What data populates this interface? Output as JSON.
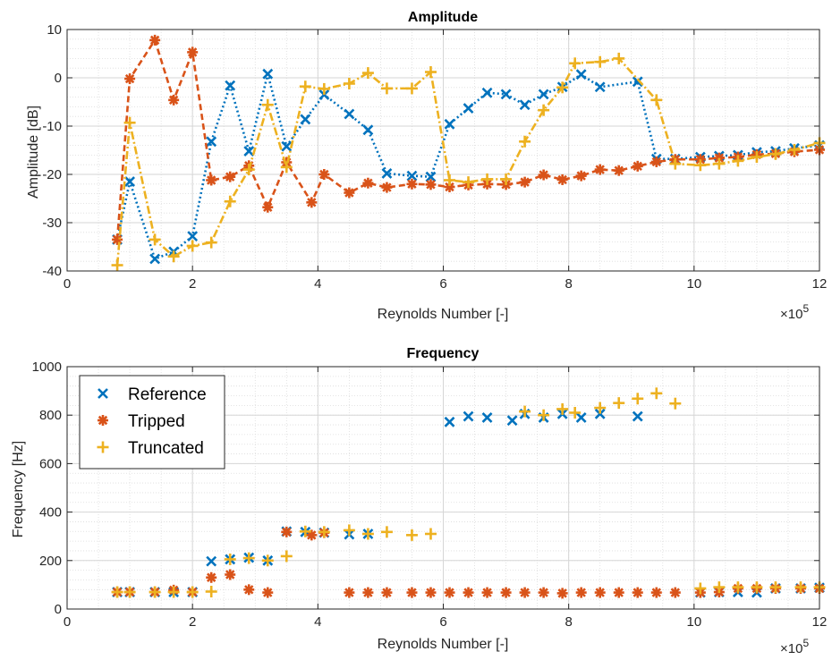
{
  "chart_data": [
    {
      "type": "line",
      "title": "Amplitude",
      "xlabel": "Reynolds Number [-]",
      "ylabel": "Amplitude [dB]",
      "x_exponent_label": "×10",
      "x_exponent": "5",
      "xlim": [
        0,
        12
      ],
      "ylim": [
        -40,
        10
      ],
      "xticks": [
        0,
        2,
        4,
        6,
        8,
        10,
        12
      ],
      "yticks": [
        -40,
        -30,
        -20,
        -10,
        0,
        10
      ],
      "grid": true,
      "minor_grid": true,
      "series": [
        {
          "name": "Reference",
          "color": "#0072BD",
          "marker": "x",
          "line": "dotted",
          "x": [
            0.8,
            1.0,
            1.4,
            1.7,
            2.0,
            2.3,
            2.6,
            2.9,
            3.2,
            3.5,
            3.8,
            4.1,
            4.5,
            4.8,
            5.1,
            5.5,
            5.8,
            6.1,
            6.4,
            6.7,
            7.0,
            7.3,
            7.6,
            7.9,
            8.2,
            8.5,
            9.1,
            9.4,
            9.7,
            10.1,
            10.4,
            10.7,
            11.0,
            11.3,
            11.6,
            12.0
          ],
          "y": [
            -33.5,
            -21.5,
            -37.5,
            -36,
            -32.8,
            -13.2,
            -1.6,
            -15.2,
            0.8,
            -14.2,
            -8.6,
            -3.5,
            -7.5,
            -10.8,
            -19.8,
            -20.3,
            -20.5,
            -9.6,
            -6.3,
            -3.1,
            -3.4,
            -5.6,
            -3.4,
            -1.9,
            0.7,
            -1.9,
            -0.8,
            -16.8,
            -16.8,
            -16.4,
            -16.2,
            -16.0,
            -15.4,
            -15.2,
            -14.6,
            -14.0
          ]
        },
        {
          "name": "Tripped",
          "color": "#D95319",
          "marker": "asterisk",
          "line": "dashed",
          "x": [
            0.8,
            1.0,
            1.4,
            1.7,
            2.0,
            2.3,
            2.6,
            2.9,
            3.2,
            3.5,
            3.9,
            4.1,
            4.5,
            4.8,
            5.1,
            5.5,
            5.8,
            6.1,
            6.4,
            6.7,
            7.0,
            7.3,
            7.6,
            7.9,
            8.2,
            8.5,
            8.8,
            9.1,
            9.4,
            9.7,
            10.1,
            10.4,
            10.7,
            11.0,
            11.3,
            11.6,
            12.0
          ],
          "y": [
            -33.5,
            -0.2,
            7.8,
            -4.6,
            5.3,
            -21.2,
            -20.5,
            -18.2,
            -26.8,
            -17.5,
            -25.8,
            -20.0,
            -23.8,
            -21.8,
            -22.7,
            -22.0,
            -22.1,
            -22.6,
            -22.2,
            -22.0,
            -22.1,
            -21.6,
            -20.1,
            -21.1,
            -20.3,
            -19.0,
            -19.2,
            -18.3,
            -17.4,
            -16.9,
            -16.9,
            -16.6,
            -16.4,
            -15.9,
            -15.7,
            -15.3,
            -14.9
          ]
        },
        {
          "name": "Truncated",
          "color": "#EDB120",
          "marker": "plus",
          "line": "dashdot",
          "x": [
            0.8,
            1.0,
            1.4,
            1.7,
            2.0,
            2.3,
            2.6,
            2.9,
            3.2,
            3.5,
            3.8,
            4.1,
            4.5,
            4.8,
            5.1,
            5.5,
            5.8,
            6.1,
            6.4,
            6.7,
            7.0,
            7.3,
            7.6,
            7.9,
            8.1,
            8.5,
            8.8,
            9.4,
            9.7,
            10.1,
            10.4,
            10.7,
            11.0,
            11.3,
            11.6,
            12.0
          ],
          "y": [
            -38.8,
            -9.3,
            -33.5,
            -37.0,
            -34.8,
            -34.1,
            -25.6,
            -19.0,
            -5.6,
            -18.5,
            -1.8,
            -2.3,
            -1.2,
            1.0,
            -2.2,
            -2.2,
            1.2,
            -21.2,
            -21.6,
            -21.0,
            -21.0,
            -13.2,
            -6.7,
            -2.0,
            3.0,
            3.3,
            4.0,
            -4.6,
            -17.8,
            -18.1,
            -17.8,
            -17.2,
            -16.4,
            -15.8,
            -14.9,
            -13.5
          ]
        }
      ]
    },
    {
      "type": "scatter",
      "title": "Frequency",
      "xlabel": "Reynolds Number [-]",
      "ylabel": "Frequency [Hz]",
      "x_exponent_label": "×10",
      "x_exponent": "5",
      "xlim": [
        0,
        12
      ],
      "ylim": [
        0,
        1000
      ],
      "xticks": [
        0,
        2,
        4,
        6,
        8,
        10,
        12
      ],
      "yticks": [
        0,
        200,
        400,
        600,
        800,
        1000
      ],
      "grid": true,
      "minor_grid": true,
      "legend": {
        "placement": "top-left",
        "entries": [
          "Reference",
          "Tripped",
          "Truncated"
        ]
      },
      "series": [
        {
          "name": "Reference",
          "color": "#0072BD",
          "marker": "x",
          "x": [
            0.8,
            1.0,
            1.4,
            1.7,
            2.0,
            2.3,
            2.6,
            2.9,
            3.2,
            3.5,
            3.8,
            4.1,
            4.5,
            4.8,
            6.1,
            6.4,
            6.7,
            7.1,
            7.3,
            7.6,
            7.9,
            8.2,
            8.5,
            9.1,
            10.1,
            10.4,
            10.7,
            11.0,
            11.3,
            11.7,
            12.0
          ],
          "y": [
            70,
            70,
            70,
            70,
            70,
            197,
            205,
            212,
            200,
            320,
            318,
            315,
            308,
            310,
            772,
            795,
            790,
            778,
            805,
            790,
            805,
            790,
            805,
            795,
            68,
            70,
            70,
            68,
            85,
            85,
            88
          ]
        },
        {
          "name": "Tripped",
          "color": "#D95319",
          "marker": "asterisk",
          "x": [
            0.8,
            1.0,
            1.4,
            1.7,
            2.0,
            2.3,
            2.6,
            2.9,
            3.2,
            3.5,
            3.9,
            4.1,
            4.5,
            4.8,
            5.1,
            5.5,
            5.8,
            6.1,
            6.4,
            6.7,
            7.0,
            7.3,
            7.6,
            7.9,
            8.2,
            8.5,
            8.8,
            9.1,
            9.4,
            9.7,
            10.1,
            10.4,
            10.7,
            11.0,
            11.3,
            11.7,
            12.0
          ],
          "y": [
            70,
            70,
            70,
            78,
            70,
            130,
            142,
            80,
            68,
            318,
            305,
            315,
            68,
            68,
            68,
            68,
            68,
            68,
            68,
            68,
            68,
            68,
            68,
            65,
            68,
            68,
            68,
            68,
            68,
            68,
            68,
            70,
            85,
            85,
            85,
            85,
            85
          ]
        },
        {
          "name": "Truncated",
          "color": "#EDB120",
          "marker": "plus",
          "x": [
            0.8,
            1.0,
            1.4,
            1.7,
            2.0,
            2.3,
            2.6,
            2.9,
            3.2,
            3.5,
            3.8,
            4.1,
            4.5,
            4.8,
            5.1,
            5.5,
            5.8,
            7.3,
            7.6,
            7.9,
            8.1,
            8.5,
            8.8,
            9.1,
            9.4,
            9.7,
            10.1,
            10.4,
            10.7,
            11.0,
            11.3,
            11.7,
            12.0
          ],
          "y": [
            70,
            70,
            70,
            70,
            70,
            72,
            205,
            210,
            200,
            218,
            320,
            318,
            325,
            310,
            318,
            305,
            310,
            815,
            800,
            825,
            810,
            830,
            850,
            868,
            890,
            848,
            85,
            90,
            90,
            90,
            90,
            90,
            90
          ]
        }
      ]
    }
  ]
}
